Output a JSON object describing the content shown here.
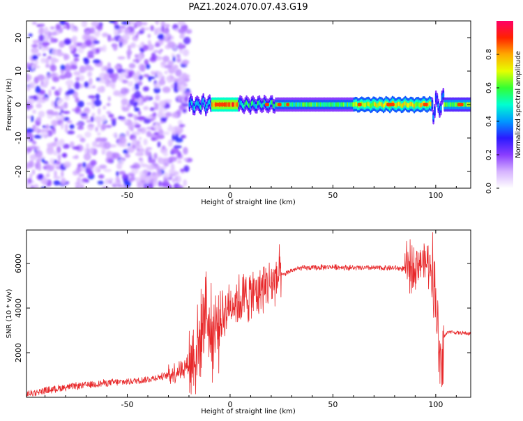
{
  "figure": {
    "title": "PAZ1.2024.070.07.43.G19"
  },
  "chart_data": [
    {
      "type": "heatmap",
      "name": "spectrogram",
      "xlabel": "Height of straight line (km)",
      "ylabel": "Frequency (Hz)",
      "xlim": [
        -99,
        117
      ],
      "ylim": [
        -25,
        25
      ],
      "xticks": [
        -50,
        0,
        50,
        100
      ],
      "xtick_labels": [
        "-50",
        "0",
        "50",
        "100"
      ],
      "yticks": [
        -20,
        -10,
        0,
        10,
        20
      ],
      "ytick_labels": [
        "-20",
        "-10",
        "0",
        "10",
        "20"
      ],
      "colorbar": {
        "label": "Normalized spectral amplitude",
        "range": [
          0,
          1
        ],
        "ticks": [
          0.0,
          0.2,
          0.4,
          0.6,
          0.8
        ],
        "tick_labels": [
          "0.0",
          "0.2",
          "0.4",
          "0.6",
          "0.8"
        ],
        "colors": [
          "#ffffff",
          "#d6b3ff",
          "#8a3dff",
          "#2a1aff",
          "#0099ff",
          "#00ffd0",
          "#33ff33",
          "#e6ff00",
          "#ffaa00",
          "#ff2200",
          "#ff0066"
        ]
      },
      "noise_region_km": [
        -99,
        -20
      ],
      "tone": {
        "frequency_hz": 0,
        "band_halfwidth_hz": 1.2,
        "segments_km": [
          {
            "x": [
              -20,
              -9
            ],
            "amplitude": 0.45,
            "f_shift": 1.5
          },
          {
            "x": [
              -9,
              4
            ],
            "amplitude": 0.85,
            "f_shift": 0
          },
          {
            "x": [
              4,
              22
            ],
            "amplitude": 0.5,
            "f_shift": 1.2
          },
          {
            "x": [
              22,
              60
            ],
            "amplitude": 0.55,
            "f_shift": 0
          },
          {
            "x": [
              60,
              98
            ],
            "amplitude": 0.7,
            "f_shift": 0.5
          },
          {
            "x": [
              98,
              104
            ],
            "amplitude": 0.35,
            "f_shift": -4
          },
          {
            "x": [
              104,
              117
            ],
            "amplitude": 0.6,
            "f_shift": 0
          }
        ]
      },
      "grid": false
    },
    {
      "type": "line",
      "name": "snr",
      "xlabel": "Height of straight line (km)",
      "ylabel": "SNR (10 * v/v)",
      "xlim": [
        -99,
        117
      ],
      "ylim": [
        0,
        7500
      ],
      "xticks": [
        -50,
        0,
        50,
        100
      ],
      "xtick_labels": [
        "-50",
        "0",
        "50",
        "100"
      ],
      "yticks": [
        2000,
        4000,
        6000
      ],
      "ytick_labels": [
        "2000",
        "4000",
        "6000"
      ],
      "series": [
        {
          "color": "#e8292b",
          "x": [
            -99,
            -90,
            -80,
            -70,
            -60,
            -50,
            -40,
            -30,
            -25,
            -20,
            -15,
            -12,
            -10,
            -8,
            -5,
            -2,
            0,
            3,
            6,
            10,
            14,
            18,
            22,
            26,
            30,
            35,
            40,
            50,
            60,
            70,
            80,
            85,
            88,
            90,
            93,
            96,
            98,
            100,
            101,
            102,
            103,
            104,
            106,
            110,
            117
          ],
          "y": [
            150,
            300,
            450,
            550,
            650,
            700,
            800,
            1000,
            1200,
            1500,
            2300,
            4300,
            3000,
            2800,
            3400,
            3900,
            4200,
            4300,
            4400,
            4600,
            4800,
            5000,
            5300,
            5500,
            5700,
            5800,
            5800,
            5850,
            5800,
            5800,
            5800,
            5750,
            5800,
            6000,
            6100,
            6000,
            5900,
            4500,
            3000,
            1500,
            1000,
            2700,
            2950,
            2900,
            2850
          ]
        }
      ],
      "grid": false
    }
  ]
}
